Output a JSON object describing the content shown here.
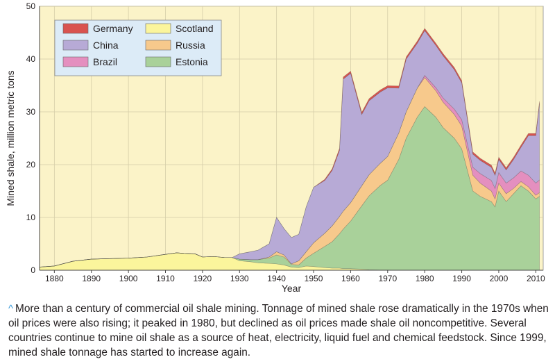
{
  "chart_data": {
    "type": "area",
    "stacked": true,
    "xlabel": "Year",
    "ylabel": "Mined shale, million metric tons",
    "xlim": [
      1876,
      2012
    ],
    "ylim": [
      0,
      50
    ],
    "x_ticks": [
      1880,
      1890,
      1900,
      1910,
      1920,
      1930,
      1940,
      1950,
      1960,
      1970,
      1980,
      1990,
      2000,
      2010
    ],
    "y_ticks": [
      0,
      10,
      20,
      30,
      40,
      50
    ],
    "x_tick_labels": [
      "1880",
      "1890",
      "1900",
      "1910",
      "1920",
      "1930",
      "1940",
      "1950",
      "1960",
      "1970",
      "1980",
      "1990",
      "2000",
      "2010"
    ],
    "y_tick_labels": [
      "0",
      "10",
      "20",
      "30",
      "40",
      "50"
    ],
    "grid": true,
    "legend_position": "top-left",
    "legend": [
      {
        "name": "Germany",
        "color": "#d9534f"
      },
      {
        "name": "Scotland",
        "color": "#fbf59c"
      },
      {
        "name": "China",
        "color": "#b7aad6"
      },
      {
        "name": "Russia",
        "color": "#f7c98c"
      },
      {
        "name": "Brazil",
        "color": "#e48fbf"
      },
      {
        "name": "Estonia",
        "color": "#a9d19a"
      }
    ],
    "stack_order": [
      "Scotland",
      "Estonia",
      "Russia",
      "Brazil",
      "China",
      "Germany"
    ],
    "years": [
      1876,
      1880,
      1885,
      1890,
      1895,
      1900,
      1905,
      1910,
      1913,
      1915,
      1918,
      1920,
      1923,
      1926,
      1928,
      1930,
      1933,
      1935,
      1938,
      1940,
      1942,
      1944,
      1946,
      1948,
      1950,
      1953,
      1955,
      1957,
      1958,
      1960,
      1963,
      1965,
      1968,
      1970,
      1973,
      1975,
      1978,
      1980,
      1983,
      1985,
      1988,
      1990,
      1993,
      1995,
      1998,
      1999,
      2000,
      2002,
      2004,
      2006,
      2008,
      2010,
      2011
    ],
    "series": [
      {
        "name": "Scotland",
        "color": "#fbf59c",
        "values": [
          0.6,
          0.8,
          1.7,
          2.1,
          2.2,
          2.3,
          2.5,
          3.0,
          3.3,
          3.2,
          3.1,
          2.5,
          2.6,
          2.4,
          2.4,
          1.8,
          1.6,
          1.4,
          1.3,
          1.2,
          1.0,
          0.6,
          0.5,
          0.8,
          0.7,
          0.5,
          0.4,
          0.4,
          0.3,
          0.3,
          0.2,
          0.1,
          0.05,
          0.05,
          0,
          0,
          0,
          0,
          0,
          0,
          0,
          0,
          0,
          0,
          0,
          0,
          0,
          0,
          0,
          0,
          0,
          0,
          0
        ]
      },
      {
        "name": "Estonia",
        "color": "#a9d19a",
        "values": [
          0,
          0,
          0,
          0,
          0,
          0,
          0,
          0,
          0,
          0,
          0,
          0,
          0,
          0,
          0,
          0.3,
          0.4,
          0.6,
          1.0,
          1.7,
          1.5,
          0.5,
          0.5,
          1.5,
          2.5,
          4.0,
          5.0,
          6.5,
          7.5,
          9.0,
          12.0,
          14.0,
          16.0,
          17.0,
          21.0,
          25.0,
          29.0,
          31.0,
          29.0,
          27.0,
          25.0,
          23.0,
          15.0,
          14.0,
          13.0,
          12.0,
          15.0,
          13.0,
          14.5,
          16.0,
          15.0,
          13.5,
          14.0
        ]
      },
      {
        "name": "Russia",
        "color": "#f7c98c",
        "values": [
          0,
          0,
          0,
          0,
          0,
          0,
          0,
          0,
          0,
          0,
          0,
          0,
          0,
          0,
          0,
          0,
          0,
          0,
          0.2,
          0.6,
          0.4,
          0.1,
          0.8,
          1.2,
          2.0,
          2.5,
          3.0,
          3.3,
          3.4,
          3.5,
          3.8,
          4.0,
          4.2,
          4.5,
          5.0,
          5.0,
          5.5,
          5.5,
          5.0,
          4.8,
          4.5,
          4.3,
          3.0,
          2.5,
          2.0,
          1.5,
          1.5,
          1.5,
          1.0,
          0.8,
          0.8,
          0.7,
          0.7
        ]
      },
      {
        "name": "Brazil",
        "color": "#e48fbf",
        "values": [
          0,
          0,
          0,
          0,
          0,
          0,
          0,
          0,
          0,
          0,
          0,
          0,
          0,
          0,
          0,
          0,
          0,
          0,
          0,
          0,
          0,
          0,
          0,
          0,
          0,
          0,
          0,
          0,
          0,
          0,
          0,
          0,
          0,
          0,
          0,
          0,
          0,
          0.4,
          0.6,
          0.8,
          1.0,
          1.2,
          1.5,
          1.8,
          2.0,
          2.0,
          2.0,
          2.0,
          2.0,
          2.0,
          2.2,
          2.3,
          2.4
        ]
      },
      {
        "name": "China",
        "color": "#b7aad6",
        "values": [
          0,
          0,
          0,
          0,
          0,
          0,
          0,
          0,
          0,
          0,
          0,
          0,
          0,
          0,
          0,
          1.0,
          1.5,
          1.8,
          2.5,
          6.5,
          5.0,
          5.0,
          5.0,
          8.5,
          10.5,
          10.0,
          10.5,
          12.5,
          25.0,
          24.5,
          13.5,
          14.0,
          13.5,
          13.0,
          8.5,
          10.0,
          8.5,
          8.5,
          8.0,
          8.0,
          7.5,
          7.0,
          2.5,
          2.5,
          2.5,
          2.5,
          2.5,
          2.5,
          3.5,
          4.5,
          7.5,
          9.0,
          14.5
        ]
      },
      {
        "name": "Germany",
        "color": "#d9534f",
        "values": [
          0,
          0,
          0,
          0,
          0,
          0,
          0,
          0,
          0,
          0,
          0,
          0,
          0,
          0,
          0,
          0,
          0,
          0,
          0,
          0,
          0,
          0,
          0,
          0,
          0,
          0.2,
          0.3,
          0.4,
          0.4,
          0.4,
          0.4,
          0.4,
          0.4,
          0.4,
          0.4,
          0.4,
          0.4,
          0.4,
          0.4,
          0.4,
          0.4,
          0.4,
          0.4,
          0.4,
          0.4,
          0.4,
          0.4,
          0.4,
          0.4,
          0.4,
          0.4,
          0.4,
          0.4
        ]
      }
    ]
  },
  "caption": {
    "caret": "^",
    "text": "More than a century of commercial oil shale mining. Tonnage of mined shale rose dramatically in the 1970s when oil prices were also rising; it peaked in 1980, but declined as oil prices made shale oil noncompetitive. Several countries continue to mine oil shale as a source of heat, electricity, liquid fuel and chemical feedstock. Since 1999, mined shale tonnage has started to increase again."
  },
  "colors": {
    "plot_background": "#fbf3c8",
    "legend_background": "#dcebf7",
    "grid": "#d5cda8",
    "caption_caret": "#3a9ad9"
  }
}
